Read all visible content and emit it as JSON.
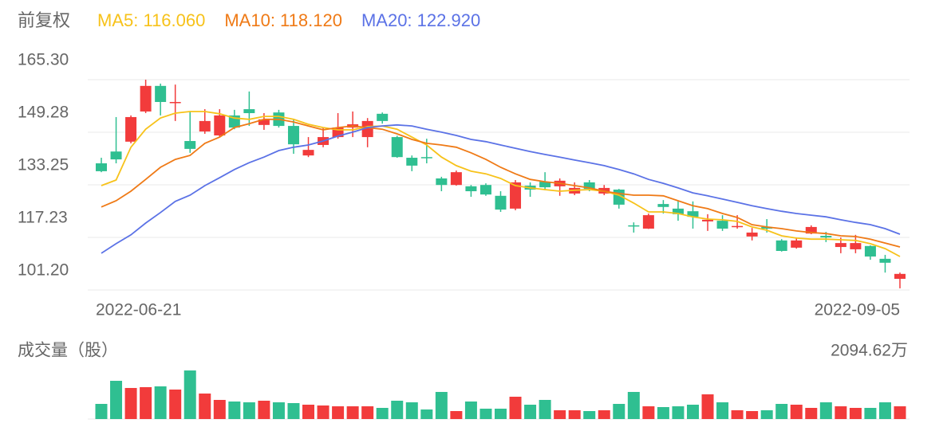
{
  "chart_data": [
    {
      "type": "candlestick",
      "title": "前复权",
      "categories": [
        "2022-06-21",
        null,
        null,
        null,
        null,
        null,
        null,
        null,
        null,
        null,
        null,
        null,
        null,
        null,
        null,
        null,
        null,
        null,
        null,
        null,
        null,
        null,
        null,
        null,
        null,
        null,
        null,
        null,
        null,
        null,
        null,
        null,
        null,
        null,
        null,
        null,
        null,
        null,
        null,
        null,
        null,
        null,
        null,
        null,
        null,
        null,
        null,
        null,
        null,
        null,
        null,
        null,
        null,
        null,
        "2022-09-05"
      ],
      "open": [
        139.8,
        143.4,
        146.4,
        155.6,
        163.4,
        158.3,
        146.6,
        149.5,
        148.3,
        154.4,
        156.3,
        151.5,
        155.3,
        151.2,
        142.2,
        145.4,
        147.8,
        150.7,
        147.8,
        154.9,
        147.8,
        141.5,
        141.7,
        135.2,
        133.2,
        132.8,
        133.2,
        129.9,
        126.0,
        133.0,
        134.2,
        132.8,
        130.6,
        134.0,
        130.6,
        131.8,
        120.9,
        119.9,
        127.4,
        126.0,
        125.2,
        122.1,
        122.3,
        120.6,
        117.5,
        120.4,
        116.3,
        114.1,
        118.4,
        117.7,
        114.3,
        113.6,
        114.6,
        110.7,
        104.6
      ],
      "close": [
        137.4,
        141.0,
        153.9,
        163.4,
        158.5,
        158.5,
        144.2,
        152.7,
        154.4,
        150.7,
        155.1,
        153.2,
        151.2,
        145.6,
        143.9,
        147.8,
        150.7,
        151.7,
        152.7,
        152.7,
        141.7,
        139.1,
        141.5,
        133.2,
        137.1,
        131.3,
        130.3,
        125.7,
        134.0,
        131.8,
        132.5,
        134.5,
        132.3,
        132.0,
        132.3,
        127.2,
        120.8,
        124.0,
        126.5,
        124.3,
        123.5,
        122.6,
        119.9,
        120.7,
        118.7,
        119.9,
        113.1,
        116.3,
        120.4,
        117.2,
        115.5,
        115.5,
        111.4,
        109.5,
        106.1
      ],
      "high": [
        141.5,
        153.9,
        154.4,
        165.3,
        164.1,
        163.8,
        155.6,
        156.3,
        156.3,
        156.1,
        161.7,
        155.1,
        156.1,
        153.2,
        147.8,
        150.7,
        155.1,
        155.6,
        153.6,
        155.3,
        148.2,
        142.2,
        147.3,
        135.7,
        137.6,
        133.2,
        133.7,
        131.3,
        134.7,
        134.0,
        137.1,
        135.2,
        134.0,
        134.7,
        133.2,
        132.0,
        121.8,
        124.5,
        128.6,
        128.2,
        128.2,
        124.3,
        124.0,
        124.0,
        120.1,
        122.8,
        116.7,
        117.2,
        120.9,
        118.9,
        117.2,
        118.0,
        114.8,
        111.9,
        106.5
      ],
      "low": [
        137.1,
        139.8,
        145.9,
        155.1,
        154.4,
        152.7,
        143.0,
        148.8,
        147.8,
        150.2,
        151.2,
        150.0,
        150.7,
        142.7,
        141.7,
        144.7,
        147.3,
        147.8,
        144.7,
        151.9,
        141.5,
        137.4,
        139.8,
        131.3,
        133.0,
        129.6,
        129.9,
        125.0,
        125.5,
        129.6,
        131.6,
        129.9,
        130.1,
        131.3,
        130.1,
        126.0,
        118.7,
        119.8,
        124.5,
        122.3,
        119.9,
        119.2,
        119.2,
        119.9,
        116.3,
        118.7,
        112.9,
        113.8,
        118.2,
        115.8,
        112.4,
        112.4,
        110.4,
        106.5,
        101.7
      ],
      "up_color": "#f23b3b",
      "down_color": "#2fbf91",
      "series": [
        {
          "name": "MA5: 116.060",
          "color": "#f7c21a",
          "values": [
            133.0,
            134.7,
            144.7,
            150.2,
            153.6,
            155.1,
            155.6,
            155.6,
            154.9,
            153.6,
            153.2,
            154.1,
            154.1,
            153.2,
            151.7,
            150.7,
            150.0,
            150.0,
            151.0,
            151.2,
            150.2,
            147.8,
            145.4,
            141.7,
            139.1,
            137.4,
            136.6,
            135.2,
            133.0,
            132.3,
            131.8,
            131.3,
            131.6,
            131.8,
            131.3,
            130.1,
            127.7,
            125.0,
            125.0,
            124.5,
            123.5,
            122.8,
            122.6,
            122.1,
            120.4,
            119.4,
            117.7,
            117.0,
            116.7,
            116.7,
            116.5,
            116.3,
            115.3,
            113.8,
            111.4
          ]
        },
        {
          "name": "MA10: 118.120",
          "color": "#ef7a16",
          "values": [
            126.5,
            128.4,
            131.3,
            134.9,
            138.6,
            141.0,
            142.2,
            145.9,
            147.8,
            150.7,
            151.9,
            153.2,
            153.2,
            152.4,
            151.2,
            150.0,
            150.7,
            151.2,
            150.7,
            150.2,
            148.8,
            147.1,
            145.9,
            145.4,
            144.7,
            143.0,
            141.0,
            138.6,
            136.6,
            134.9,
            134.2,
            133.7,
            133.0,
            132.3,
            131.3,
            130.6,
            130.1,
            130.1,
            129.9,
            128.4,
            126.9,
            126.0,
            124.5,
            123.3,
            121.1,
            120.4,
            119.9,
            119.2,
            118.7,
            118.4,
            117.7,
            117.5,
            116.7,
            115.5,
            114.3
          ]
        },
        {
          "name": "MA20: 122.920",
          "color": "#5b72e6",
          "values": [
            112.4,
            115.3,
            118.0,
            121.6,
            124.8,
            128.2,
            130.1,
            133.0,
            135.4,
            137.9,
            140.0,
            141.7,
            143.7,
            144.7,
            145.4,
            146.6,
            148.1,
            149.3,
            150.7,
            151.2,
            151.5,
            151.2,
            150.2,
            149.3,
            148.3,
            147.1,
            146.4,
            145.4,
            144.4,
            143.4,
            142.5,
            141.7,
            140.8,
            140.0,
            139.1,
            137.9,
            136.6,
            134.9,
            133.7,
            132.3,
            130.8,
            129.9,
            128.9,
            127.9,
            126.9,
            126.0,
            125.2,
            124.5,
            124.0,
            123.5,
            122.6,
            121.8,
            121.1,
            119.9,
            118.2
          ]
        }
      ],
      "ylim": [
        101.2,
        165.3
      ],
      "yticks": [
        {
          "value": 165.3,
          "label": "165.30"
        },
        149.28,
        133.25,
        117.23,
        {
          "value": 101.2,
          "label": "101.20"
        }
      ],
      "grid": true
    },
    {
      "type": "bar",
      "title": "成交量（股）",
      "values": [
        642,
        1621,
        1317,
        1351,
        1385,
        1250,
        2060,
        1081,
        811,
        743,
        709,
        777,
        709,
        676,
        608,
        574,
        540,
        540,
        540,
        473,
        777,
        709,
        405,
        1149,
        338,
        743,
        439,
        439,
        946,
        608,
        811,
        372,
        372,
        338,
        372,
        642,
        1149,
        540,
        507,
        540,
        608,
        1047,
        709,
        372,
        338,
        372,
        642,
        608,
        473,
        709,
        540,
        473,
        473,
        709,
        540
      ],
      "ylim": [
        0,
        2094.62
      ],
      "yticks": [
        {
          "value": 2094.62,
          "label": "2094.62万"
        }
      ]
    }
  ]
}
